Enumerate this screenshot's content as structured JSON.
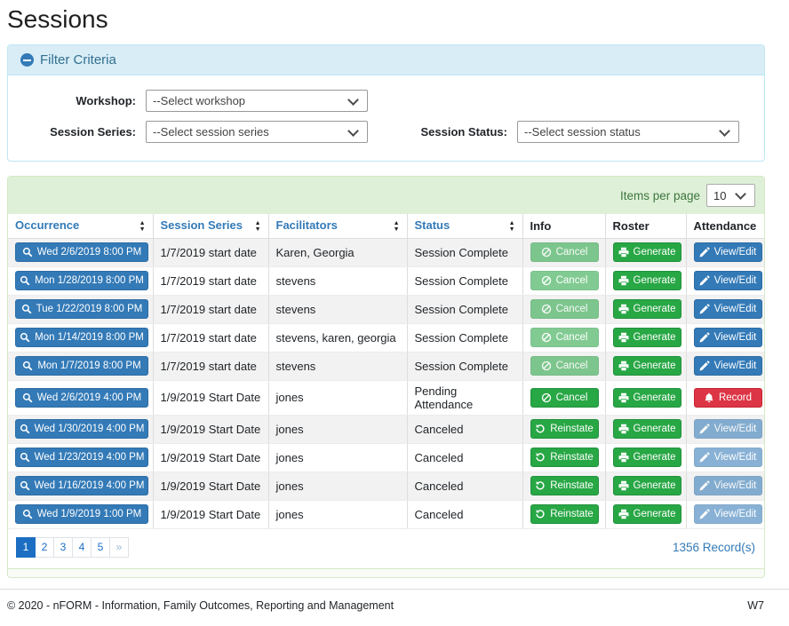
{
  "page_title": "Sessions",
  "filter": {
    "title": "Filter Criteria",
    "collapse_icon": "minus-circle-icon",
    "workshop": {
      "label": "Workshop:",
      "selected": "--Select workshop"
    },
    "session_series": {
      "label": "Session Series:",
      "selected": "--Select session series"
    },
    "session_status": {
      "label": "Session Status:",
      "selected": "--Select session status"
    }
  },
  "table": {
    "items_per_page_label": "Items per page",
    "items_per_page_value": "10",
    "columns": [
      {
        "label": "Occurrence",
        "sortable": true
      },
      {
        "label": "Session Series",
        "sortable": true
      },
      {
        "label": "Facilitators",
        "sortable": true
      },
      {
        "label": "Status",
        "sortable": true
      },
      {
        "label": "Info",
        "sortable": false
      },
      {
        "label": "Roster",
        "sortable": false
      },
      {
        "label": "Attendance",
        "sortable": false
      }
    ],
    "rows": [
      {
        "occurrence": "Wed 2/6/2019 8:00 PM",
        "session_series": "1/7/2019 start date",
        "facilitators": "Karen, Georgia",
        "status": "Session Complete",
        "info": {
          "label": "Cancel",
          "icon": "ban-icon",
          "variant": "success",
          "disabled": true
        },
        "roster": {
          "label": "Generate",
          "icon": "printer-icon",
          "variant": "success",
          "disabled": false
        },
        "attendance": {
          "label": "View/Edit",
          "icon": "pencil-icon",
          "variant": "primary",
          "disabled": false
        }
      },
      {
        "occurrence": "Mon 1/28/2019 8:00 PM",
        "session_series": "1/7/2019 start date",
        "facilitators": "stevens",
        "status": "Session Complete",
        "info": {
          "label": "Cancel",
          "icon": "ban-icon",
          "variant": "success",
          "disabled": true
        },
        "roster": {
          "label": "Generate",
          "icon": "printer-icon",
          "variant": "success",
          "disabled": false
        },
        "attendance": {
          "label": "View/Edit",
          "icon": "pencil-icon",
          "variant": "primary",
          "disabled": false
        }
      },
      {
        "occurrence": "Tue 1/22/2019 8:00 PM",
        "session_series": "1/7/2019 start date",
        "facilitators": "stevens",
        "status": "Session Complete",
        "info": {
          "label": "Cancel",
          "icon": "ban-icon",
          "variant": "success",
          "disabled": true
        },
        "roster": {
          "label": "Generate",
          "icon": "printer-icon",
          "variant": "success",
          "disabled": false
        },
        "attendance": {
          "label": "View/Edit",
          "icon": "pencil-icon",
          "variant": "primary",
          "disabled": false
        }
      },
      {
        "occurrence": "Mon 1/14/2019 8:00 PM",
        "session_series": "1/7/2019 start date",
        "facilitators": "stevens, karen, georgia",
        "status": "Session Complete",
        "info": {
          "label": "Cancel",
          "icon": "ban-icon",
          "variant": "success",
          "disabled": true
        },
        "roster": {
          "label": "Generate",
          "icon": "printer-icon",
          "variant": "success",
          "disabled": false
        },
        "attendance": {
          "label": "View/Edit",
          "icon": "pencil-icon",
          "variant": "primary",
          "disabled": false
        }
      },
      {
        "occurrence": "Mon 1/7/2019 8:00 PM",
        "session_series": "1/7/2019 start date",
        "facilitators": "stevens",
        "status": "Session Complete",
        "info": {
          "label": "Cancel",
          "icon": "ban-icon",
          "variant": "success",
          "disabled": true
        },
        "roster": {
          "label": "Generate",
          "icon": "printer-icon",
          "variant": "success",
          "disabled": false
        },
        "attendance": {
          "label": "View/Edit",
          "icon": "pencil-icon",
          "variant": "primary",
          "disabled": false
        }
      },
      {
        "occurrence": "Wed 2/6/2019 4:00 PM",
        "session_series": "1/9/2019 Start Date",
        "facilitators": "jones",
        "status": "Pending Attendance",
        "info": {
          "label": "Cancel",
          "icon": "ban-icon",
          "variant": "success",
          "disabled": false
        },
        "roster": {
          "label": "Generate",
          "icon": "printer-icon",
          "variant": "success",
          "disabled": false
        },
        "attendance": {
          "label": "Record",
          "icon": "bell-icon",
          "variant": "danger",
          "disabled": false
        }
      },
      {
        "occurrence": "Wed 1/30/2019 4:00 PM",
        "session_series": "1/9/2019 Start Date",
        "facilitators": "jones",
        "status": "Canceled",
        "info": {
          "label": "Reinstate",
          "icon": "reinstate-icon",
          "variant": "success",
          "disabled": false
        },
        "roster": {
          "label": "Generate",
          "icon": "printer-icon",
          "variant": "success",
          "disabled": false
        },
        "attendance": {
          "label": "View/Edit",
          "icon": "pencil-icon",
          "variant": "primary",
          "disabled": true
        }
      },
      {
        "occurrence": "Wed 1/23/2019 4:00 PM",
        "session_series": "1/9/2019 Start Date",
        "facilitators": "jones",
        "status": "Canceled",
        "info": {
          "label": "Reinstate",
          "icon": "reinstate-icon",
          "variant": "success",
          "disabled": false
        },
        "roster": {
          "label": "Generate",
          "icon": "printer-icon",
          "variant": "success",
          "disabled": false
        },
        "attendance": {
          "label": "View/Edit",
          "icon": "pencil-icon",
          "variant": "primary",
          "disabled": true
        }
      },
      {
        "occurrence": "Wed 1/16/2019 4:00 PM",
        "session_series": "1/9/2019 Start Date",
        "facilitators": "jones",
        "status": "Canceled",
        "info": {
          "label": "Reinstate",
          "icon": "reinstate-icon",
          "variant": "success",
          "disabled": false
        },
        "roster": {
          "label": "Generate",
          "icon": "printer-icon",
          "variant": "success",
          "disabled": false
        },
        "attendance": {
          "label": "View/Edit",
          "icon": "pencil-icon",
          "variant": "primary",
          "disabled": true
        }
      },
      {
        "occurrence": "Wed 1/9/2019 1:00 PM",
        "session_series": "1/9/2019 Start Date",
        "facilitators": "jones",
        "status": "Canceled",
        "info": {
          "label": "Reinstate",
          "icon": "reinstate-icon",
          "variant": "success",
          "disabled": false
        },
        "roster": {
          "label": "Generate",
          "icon": "printer-icon",
          "variant": "success",
          "disabled": false
        },
        "attendance": {
          "label": "View/Edit",
          "icon": "pencil-icon",
          "variant": "primary",
          "disabled": true
        }
      }
    ],
    "pagination": {
      "pages": [
        {
          "label": "1",
          "active": true
        },
        {
          "label": "2"
        },
        {
          "label": "3"
        },
        {
          "label": "4"
        },
        {
          "label": "5"
        },
        {
          "label": "»",
          "muted": true
        }
      ]
    },
    "records_text": "1356 Record(s)"
  },
  "footer": {
    "copyright": "© 2020 - nFORM - Information, Family Outcomes, Reporting and Management",
    "environment": "W7"
  },
  "colors": {
    "primary": "#337ab7",
    "success": "#28a745",
    "danger": "#dc3545",
    "pagination_active": "#1b6ec2",
    "filter_header_bg": "#d9edf7",
    "filter_header_text": "#31708f",
    "table_header_bg": "#dff0d8",
    "table_header_text": "#3c763d",
    "stripe_row_bg": "#f2f2f2"
  }
}
